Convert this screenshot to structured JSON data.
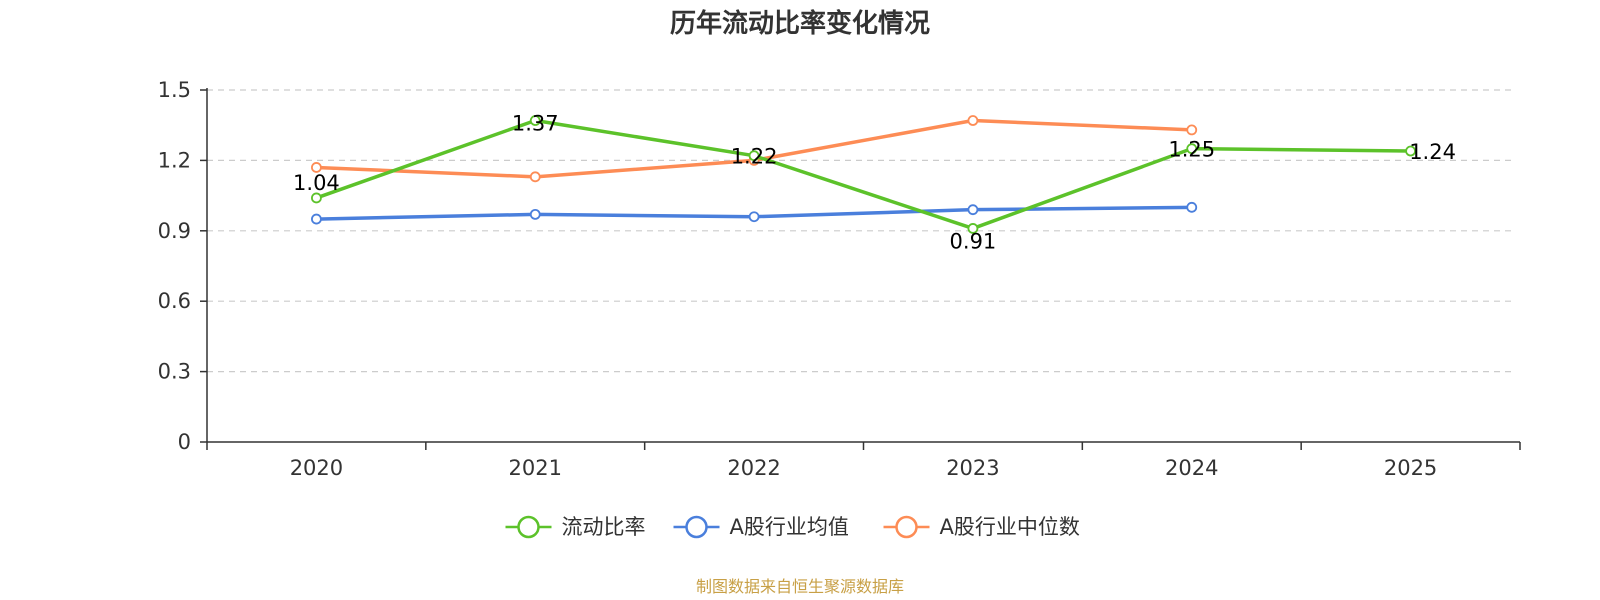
{
  "chart_data": {
    "type": "line",
    "title": "历年流动比率变化情况",
    "categories": [
      "2020",
      "2021",
      "2022",
      "2023",
      "2024",
      "2025"
    ],
    "ylim": [
      0,
      1.5
    ],
    "yticks": [
      "0",
      "0.3",
      "0.6",
      "0.9",
      "1.2",
      "1.5"
    ],
    "grid": true,
    "legend_position": "bottom",
    "series": [
      {
        "name": "流动比率",
        "color": "#5cc22a",
        "values": [
          1.04,
          1.37,
          1.22,
          0.91,
          1.25,
          1.24
        ],
        "labels": [
          "1.04",
          "1.37",
          "1.22",
          "0.91",
          "1.25",
          "1.24"
        ]
      },
      {
        "name": "A股行业均值",
        "color": "#4a7fdc",
        "values": [
          0.95,
          0.97,
          0.96,
          0.99,
          1.0,
          null
        ]
      },
      {
        "name": "A股行业中位数",
        "color": "#fd8c55",
        "values": [
          1.17,
          1.13,
          1.2,
          1.37,
          1.33,
          null
        ]
      }
    ]
  },
  "source_note": "制图数据来自恒生聚源数据库"
}
